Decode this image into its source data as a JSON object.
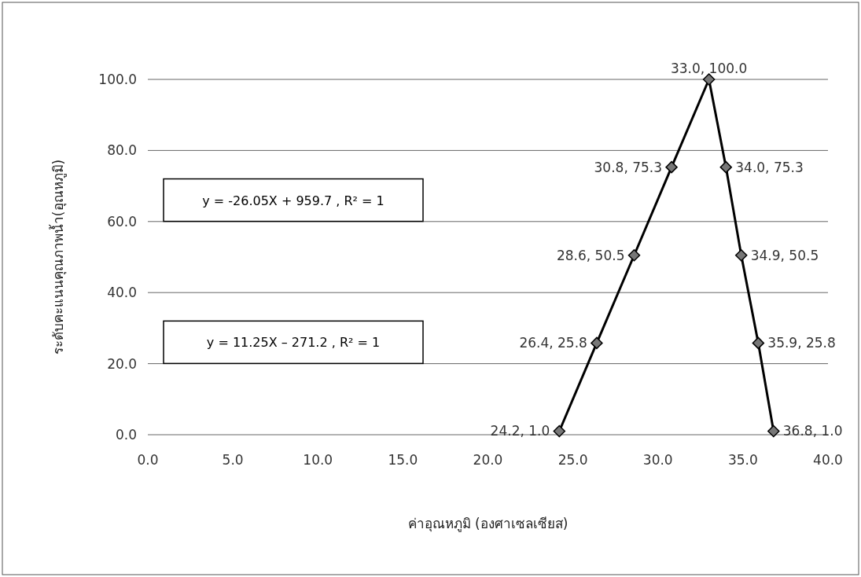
{
  "chart_data": {
    "type": "line",
    "xlabel": "ค่าอุณหภูมิ (องศาเซลเซียส)",
    "ylabel": "ระดับคะแนนคุณภาพน้ำ(อุณหภูมิ)",
    "x": [
      24.2,
      26.4,
      28.6,
      30.8,
      33.0,
      34.0,
      34.9,
      35.9,
      36.8
    ],
    "series": [
      {
        "color": "#000000",
        "values": [
          1.0,
          25.8,
          50.5,
          75.3,
          100.0,
          75.3,
          50.5,
          25.8,
          1.0
        ],
        "value_labels": [
          "24.2, 1.0",
          "26.4, 25.8",
          "28.6, 50.5",
          "30.8, 75.3",
          "33.0, 100.0",
          "34.0, 75.3",
          "34.9, 50.5",
          "35.9, 25.8",
          "36.8, 1.0"
        ]
      }
    ],
    "marker": "diamond",
    "xlim": [
      0,
      40
    ],
    "xticks": [
      {
        "value": 0,
        "label": "0.0"
      },
      {
        "value": 5,
        "label": "5.0"
      },
      {
        "value": 10,
        "label": "10.0"
      },
      {
        "value": 15,
        "label": "15.0"
      },
      {
        "value": 20,
        "label": "20.0"
      },
      {
        "value": 25,
        "label": "25.0"
      },
      {
        "value": 30,
        "label": "30.0"
      },
      {
        "value": 35,
        "label": "35.0"
      },
      {
        "value": 40,
        "label": "40.0"
      }
    ],
    "ylim": [
      0,
      100
    ],
    "yticks": [
      {
        "value": 0,
        "label": "0.0"
      },
      {
        "value": 20,
        "label": "20.0"
      },
      {
        "value": 40,
        "label": "40.0"
      },
      {
        "value": 60,
        "label": "60.0"
      },
      {
        "value": 80,
        "label": "80.0"
      },
      {
        "value": 100,
        "label": "100.0"
      }
    ],
    "grid": "y",
    "annotations": [
      "y = 11.25X – 271.2 , R² = 1",
      "y = -26.05X + 959.7 , R² = 1"
    ]
  }
}
